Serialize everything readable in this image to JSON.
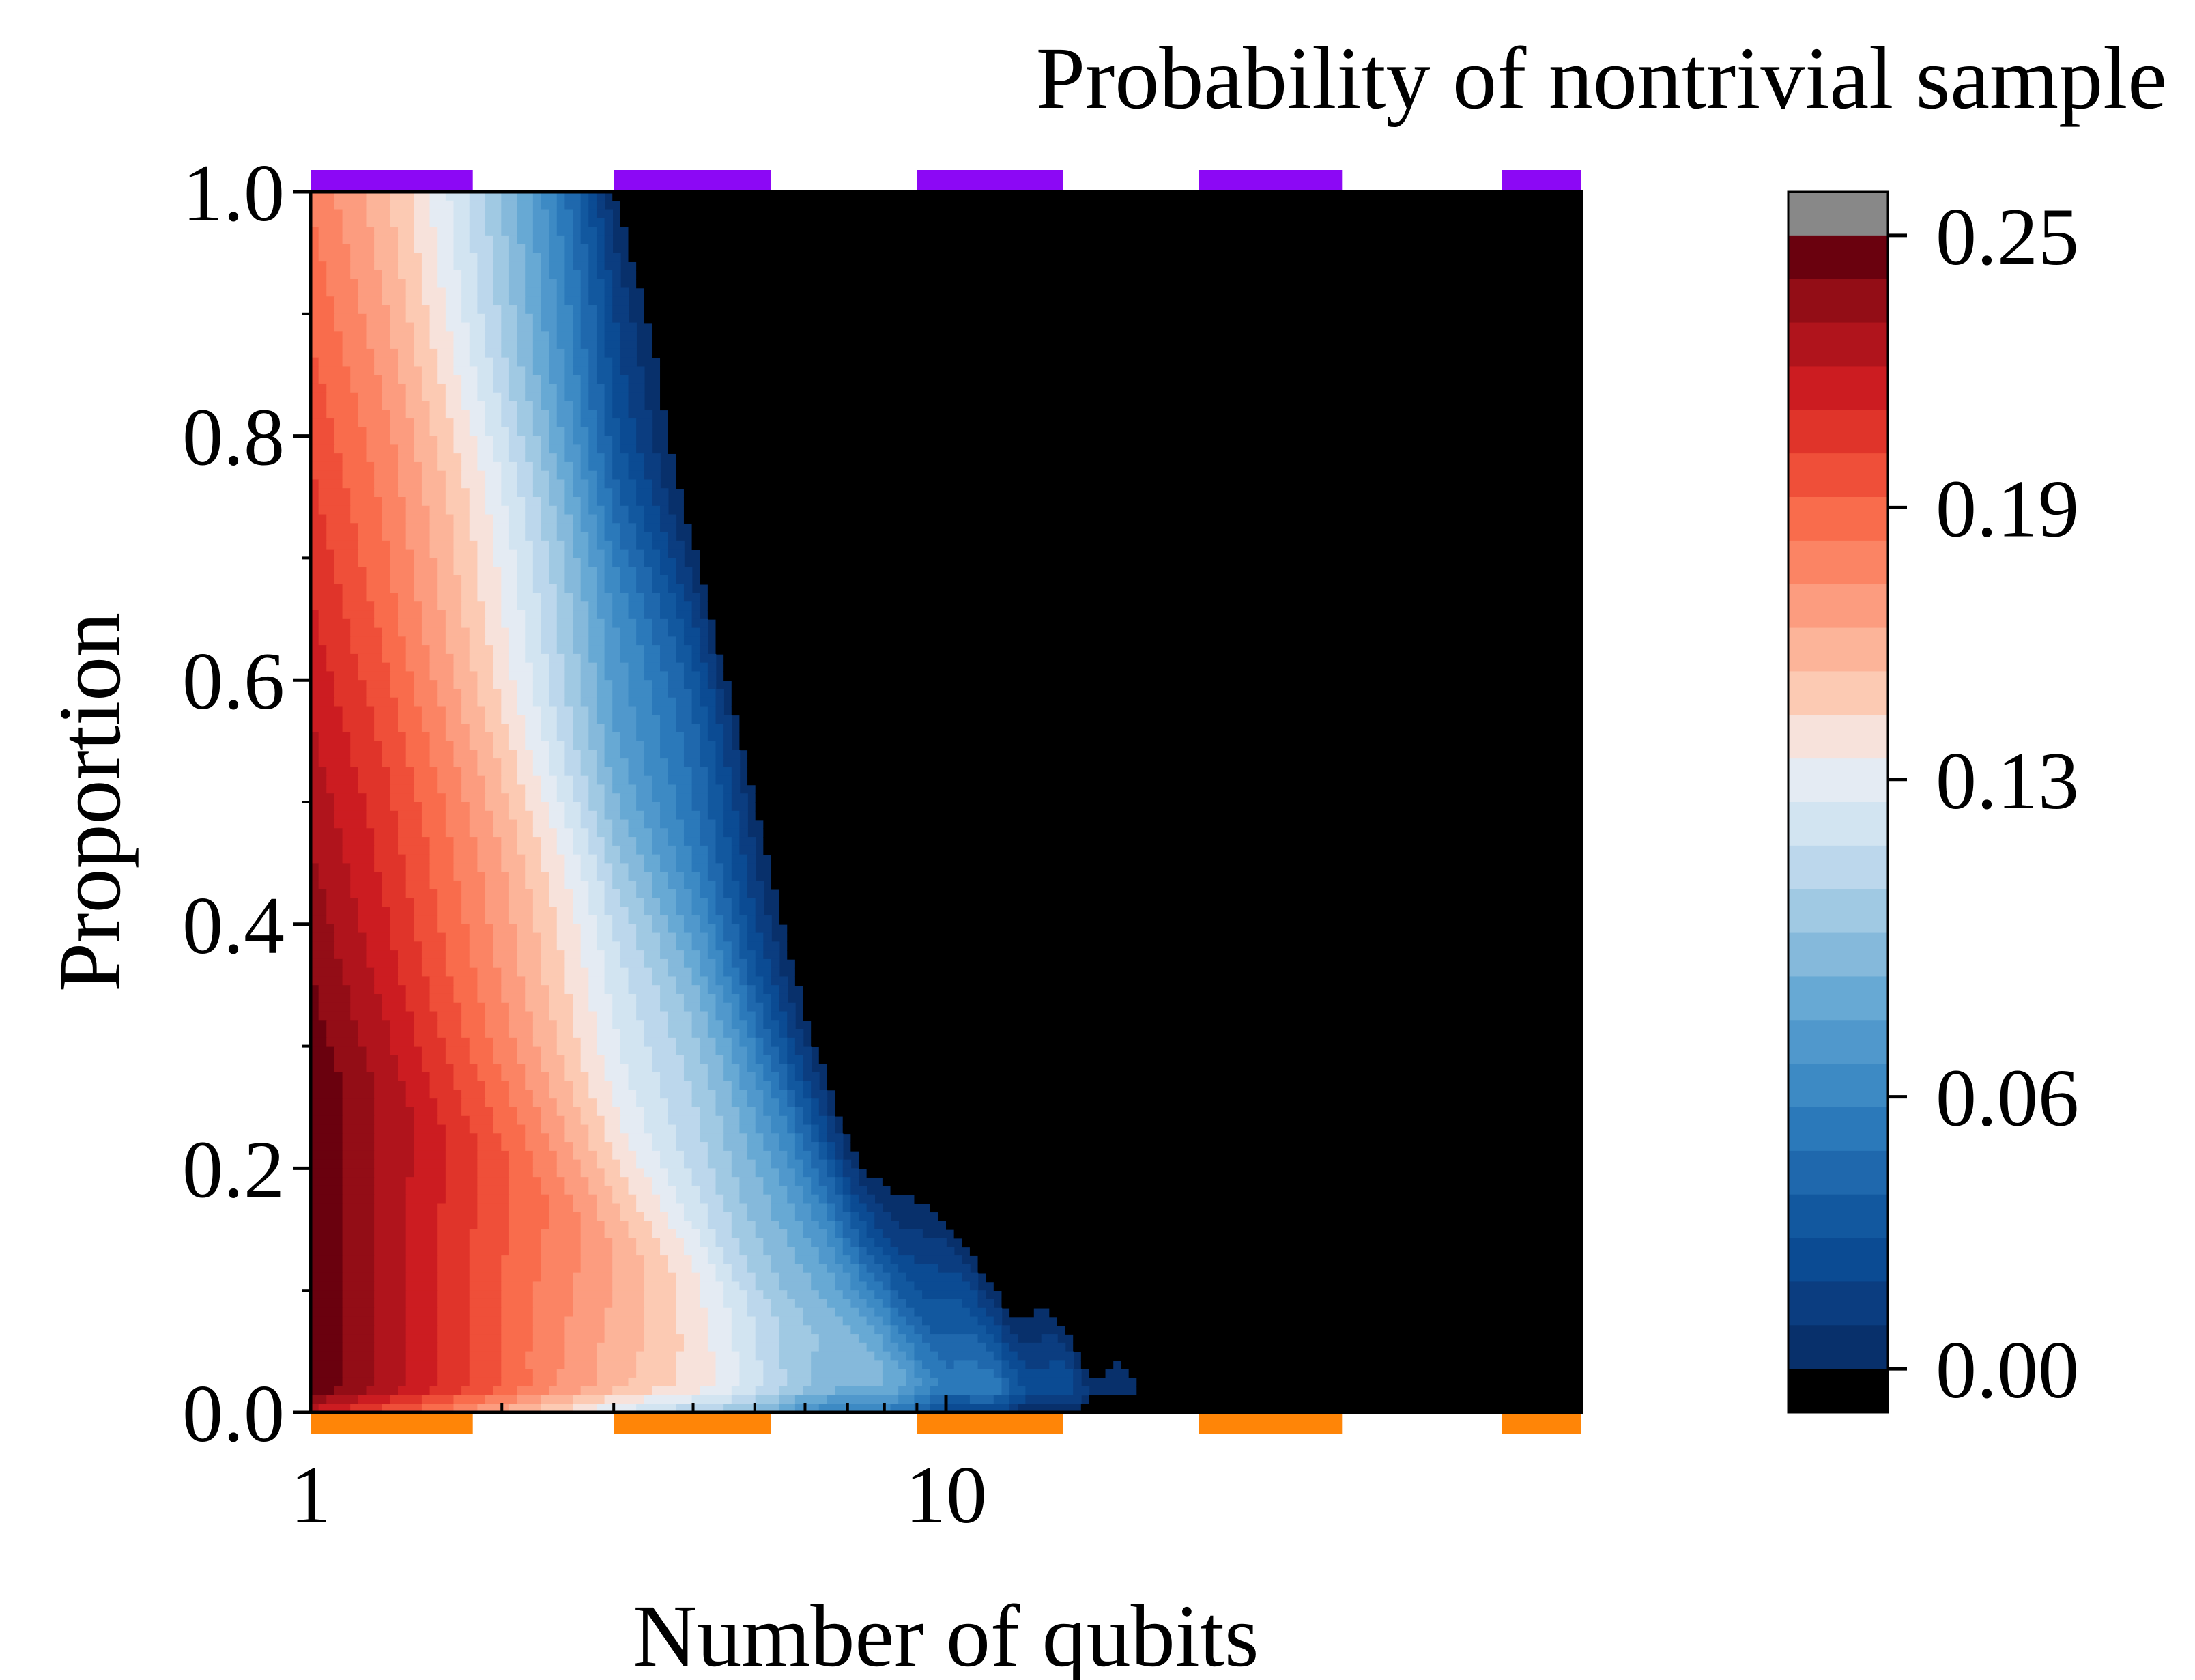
{
  "chart_data": {
    "type": "heatmap",
    "subtype": "filled-contour",
    "title": "Probability of nontrivial sample",
    "xlabel": "Number of qubits",
    "ylabel": "Proportion",
    "xscale": "log",
    "xlim": [
      1,
      100
    ],
    "ylim": [
      0.0,
      1.0
    ],
    "x_ticks": [
      {
        "value": 1,
        "label": "1"
      },
      {
        "value": 10,
        "label": "10"
      }
    ],
    "y_ticks": [
      {
        "value": 0.0,
        "label": "0.0"
      },
      {
        "value": 0.2,
        "label": "0.2"
      },
      {
        "value": 0.4,
        "label": "0.4"
      },
      {
        "value": 0.6,
        "label": "0.6"
      },
      {
        "value": 0.8,
        "label": "0.8"
      },
      {
        "value": 1.0,
        "label": "1.0"
      }
    ],
    "colorbar": {
      "min": 0.0,
      "max": 0.25,
      "ticks": [
        {
          "value": 0.25,
          "label": "0.25"
        },
        {
          "value": 0.19,
          "label": "0.19"
        },
        {
          "value": 0.13,
          "label": "0.13"
        },
        {
          "value": 0.06,
          "label": "0.06"
        },
        {
          "value": 0.0,
          "label": "0.00"
        }
      ],
      "over_color": "#888888",
      "under_color": "#000000",
      "levels": [
        "#08306b",
        "#0b3d80",
        "#0b4b93",
        "#12589f",
        "#1f68ad",
        "#2b79ba",
        "#3d8ac4",
        "#5098cc",
        "#67a9d4",
        "#85b9db",
        "#a0c9e3",
        "#bcd7ec",
        "#d2e4f1",
        "#e4ebf3",
        "#f7e2db",
        "#fccab3",
        "#fcb499",
        "#fc9c7f",
        "#fb8464",
        "#f96c4c",
        "#ef4f39",
        "#e0342a",
        "#cc1c21",
        "#b0141c",
        "#930d16",
        "#6a010e"
      ]
    },
    "band_centers": [
      {
        "q": 1.0,
        "center": 0.26
      },
      {
        "q": 1.3,
        "center": 0.255
      },
      {
        "q": 1.6,
        "center": 0.23
      },
      {
        "q": 2.0,
        "center": 0.2
      },
      {
        "q": 2.5,
        "center": 0.165
      },
      {
        "q": 3.0,
        "center": 0.135
      },
      {
        "q": 4.0,
        "center": 0.115
      },
      {
        "q": 5.0,
        "center": 0.085
      },
      {
        "q": 7.0,
        "center": 0.05
      },
      {
        "q": 10.0,
        "center": 0.025
      },
      {
        "q": 15.0,
        "center": 0.012
      },
      {
        "q": 25.0,
        "center": 0.006
      },
      {
        "q": 40.0,
        "center": 0.004
      },
      {
        "q": 100.0,
        "center": 0.002
      }
    ],
    "edge_markers": {
      "top_color": "#8c08f5",
      "bottom_color": "#ff8507",
      "segments": [
        [
          1,
          1.8
        ],
        [
          3,
          5.3
        ],
        [
          9,
          15.3
        ],
        [
          25,
          42
        ],
        [
          75,
          100
        ]
      ]
    }
  }
}
